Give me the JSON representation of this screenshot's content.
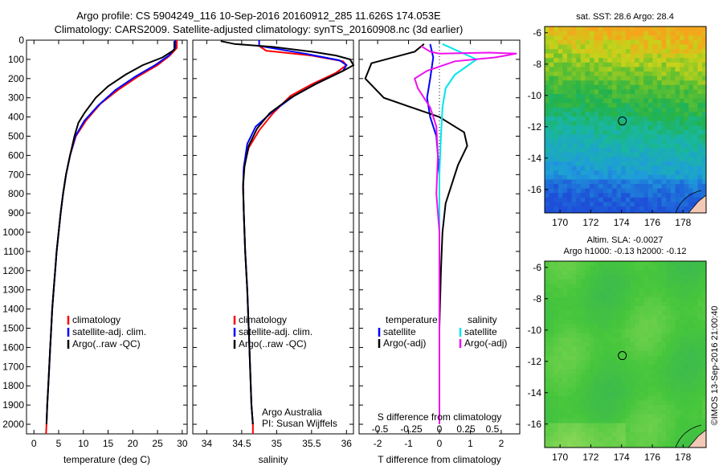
{
  "header": {
    "line1": "Argo profile: CS 5904249_116 10-Sep-2016 20160912_285 11.626S 174.053E",
    "line2": "Climatology: CARS2009. Satellite-adjusted climatology: synTS_20160908.nc (3d earlier)"
  },
  "side_label": "©IMOS 13-Sep-2016 21:00:40",
  "colors": {
    "climatology": "#ff0000",
    "satellite": "#0000ff",
    "argo": "#000000",
    "satellite_s": "#00e5ee",
    "argo_s": "#ee11ee"
  },
  "chart_data": [
    {
      "type": "line",
      "xlabel": "temperature (deg C)",
      "ylim": [
        2050,
        0
      ],
      "xlim": [
        -1.5,
        31
      ],
      "xticks": [
        0,
        5,
        10,
        15,
        20,
        25,
        30
      ],
      "yticks": [
        0,
        100,
        200,
        300,
        400,
        500,
        600,
        700,
        800,
        900,
        1000,
        1100,
        1200,
        1300,
        1400,
        1500,
        1600,
        1700,
        1800,
        1900,
        2000
      ],
      "legend": [
        "climatology",
        "satellite-adj. clim.",
        "Argo(..raw -QC)"
      ],
      "series": [
        {
          "name": "climatology",
          "color": "#ff0000",
          "points": [
            [
              28.9,
              0
            ],
            [
              28.9,
              40
            ],
            [
              27.5,
              80
            ],
            [
              25,
              130
            ],
            [
              21,
              190
            ],
            [
              17,
              260
            ],
            [
              13.5,
              330
            ],
            [
              10.5,
              420
            ],
            [
              8.5,
              500
            ],
            [
              7.3,
              600
            ],
            [
              6.5,
              700
            ],
            [
              5.9,
              800
            ],
            [
              5.4,
              900
            ],
            [
              5,
              1000
            ],
            [
              4.6,
              1100
            ],
            [
              4.3,
              1200
            ],
            [
              4,
              1300
            ],
            [
              3.7,
              1400
            ],
            [
              3.5,
              1500
            ],
            [
              3.3,
              1600
            ],
            [
              3.1,
              1700
            ],
            [
              2.9,
              1800
            ],
            [
              2.7,
              1900
            ],
            [
              2.55,
              2000
            ],
            [
              2.45,
              2050
            ]
          ]
        },
        {
          "name": "satellite-adj. clim.",
          "color": "#0000ff",
          "points": [
            [
              28.6,
              0
            ],
            [
              28.6,
              40
            ],
            [
              27.3,
              80
            ],
            [
              24.5,
              130
            ],
            [
              20.5,
              190
            ],
            [
              16.5,
              260
            ],
            [
              13,
              340
            ],
            [
              10.2,
              420
            ],
            [
              8.4,
              500
            ],
            [
              7.3,
              600
            ],
            [
              6.5,
              700
            ],
            [
              5.9,
              800
            ],
            [
              5.4,
              900
            ],
            [
              5,
              1000
            ],
            [
              4.6,
              1100
            ],
            [
              4.3,
              1200
            ],
            [
              4,
              1300
            ],
            [
              3.7,
              1400
            ],
            [
              3.5,
              1500
            ],
            [
              3.3,
              1600
            ],
            [
              3.1,
              1700
            ],
            [
              2.9,
              1800
            ],
            [
              2.7,
              1900
            ],
            [
              2.55,
              2000
            ]
          ]
        },
        {
          "name": "Argo(..raw -QC)",
          "color": "#000000",
          "points": [
            [
              28.4,
              5
            ],
            [
              28.4,
              50
            ],
            [
              26,
              90
            ],
            [
              22,
              130
            ],
            [
              18.5,
              180
            ],
            [
              15,
              240
            ],
            [
              12.5,
              300
            ],
            [
              10.2,
              380
            ],
            [
              9,
              430
            ],
            [
              8.2,
              500
            ],
            [
              7.3,
              600
            ],
            [
              6.5,
              700
            ],
            [
              5.9,
              800
            ],
            [
              5.4,
              900
            ],
            [
              5,
              1000
            ],
            [
              4.6,
              1100
            ],
            [
              4.3,
              1200
            ],
            [
              4,
              1300
            ],
            [
              3.7,
              1400
            ],
            [
              3.5,
              1500
            ],
            [
              3.3,
              1600
            ],
            [
              3.1,
              1700
            ],
            [
              2.9,
              1800
            ],
            [
              2.7,
              1900
            ],
            [
              2.55,
              2000
            ]
          ]
        }
      ]
    },
    {
      "type": "line",
      "xlabel": "salinity",
      "ylim": [
        2050,
        0
      ],
      "xlim": [
        33.8,
        36.1
      ],
      "xticks": [
        34,
        34.5,
        35,
        35.5,
        36
      ],
      "legend": [
        "climatology",
        "satellite-adj. clim.",
        "Argo(..raw -QC)"
      ],
      "annotation": [
        "Argo Australia",
        "PI: Susan Wijffels"
      ],
      "series": [
        {
          "name": "climatology",
          "color": "#ff0000",
          "points": [
            [
              34.75,
              30
            ],
            [
              34.85,
              55
            ],
            [
              35.5,
              80
            ],
            [
              35.95,
              110
            ],
            [
              36,
              130
            ],
            [
              35.85,
              170
            ],
            [
              35.5,
              230
            ],
            [
              35.2,
              290
            ],
            [
              34.95,
              380
            ],
            [
              34.75,
              470
            ],
            [
              34.6,
              560
            ],
            [
              34.53,
              660
            ],
            [
              34.52,
              760
            ],
            [
              34.53,
              900
            ],
            [
              34.55,
              1100
            ],
            [
              34.58,
              1300
            ],
            [
              34.6,
              1500
            ],
            [
              34.62,
              1700
            ],
            [
              34.64,
              1900
            ],
            [
              34.66,
              2000
            ],
            [
              34.66,
              2050
            ]
          ]
        },
        {
          "name": "satellite-adj. clim.",
          "color": "#0000ff",
          "points": [
            [
              34.75,
              0
            ],
            [
              34.75,
              30
            ],
            [
              35.4,
              70
            ],
            [
              35.9,
              105
            ],
            [
              36,
              130
            ],
            [
              35.95,
              160
            ],
            [
              35.6,
              220
            ],
            [
              35.25,
              290
            ],
            [
              34.95,
              370
            ],
            [
              34.7,
              450
            ],
            [
              34.58,
              540
            ],
            [
              34.53,
              660
            ],
            [
              34.52,
              760
            ],
            [
              34.53,
              900
            ],
            [
              34.55,
              1100
            ],
            [
              34.58,
              1300
            ],
            [
              34.6,
              1500
            ],
            [
              34.62,
              1700
            ],
            [
              34.64,
              1900
            ],
            [
              34.66,
              2000
            ]
          ]
        },
        {
          "name": "Argo(..raw -QC)",
          "color": "#000000",
          "points": [
            [
              34.2,
              5
            ],
            [
              34.4,
              20
            ],
            [
              34.95,
              35
            ],
            [
              35.5,
              60
            ],
            [
              35.85,
              80
            ],
            [
              36.05,
              100
            ],
            [
              36.1,
              130
            ],
            [
              35.95,
              160
            ],
            [
              35.55,
              230
            ],
            [
              35.2,
              300
            ],
            [
              34.9,
              380
            ],
            [
              34.72,
              460
            ],
            [
              34.6,
              550
            ],
            [
              34.54,
              660
            ],
            [
              34.52,
              760
            ],
            [
              34.53,
              900
            ],
            [
              34.55,
              1100
            ],
            [
              34.58,
              1300
            ],
            [
              34.6,
              1500
            ],
            [
              34.62,
              1700
            ],
            [
              34.64,
              1900
            ],
            [
              34.66,
              2000
            ]
          ]
        }
      ]
    },
    {
      "type": "line",
      "xlabel": "T difference from climatology",
      "xlabel_top": "S difference from climatology",
      "ylim": [
        2050,
        0
      ],
      "xlim": [
        -2.6,
        2.6
      ],
      "xticks": [
        -2,
        -1,
        0,
        1,
        2
      ],
      "xticks_top_labels": [
        "-0.5",
        "-0.25",
        "0",
        "0.25",
        "0.5"
      ],
      "legend_headers": [
        "temperature",
        "salinity"
      ],
      "legend": [
        "satellite",
        "Argo(-adj)",
        "satellite",
        "Argo(-adj)"
      ],
      "series": [
        {
          "name": "temperature satellite",
          "color": "#0000ff",
          "points": [
            [
              -0.3,
              20
            ],
            [
              -0.2,
              90
            ],
            [
              -0.3,
              200
            ],
            [
              -0.4,
              300
            ],
            [
              -0.3,
              400
            ],
            [
              -0.1,
              500
            ],
            [
              -0.05,
              600
            ],
            [
              0,
              700
            ],
            [
              0,
              800
            ],
            [
              0,
              1000
            ],
            [
              0,
              1500
            ],
            [
              0,
              2000
            ]
          ]
        },
        {
          "name": "temperature Argo(-adj)",
          "color": "#000000",
          "points": [
            [
              -0.5,
              20
            ],
            [
              -0.8,
              60
            ],
            [
              -2.2,
              120
            ],
            [
              -2.4,
              200
            ],
            [
              -1.8,
              300
            ],
            [
              -0.9,
              350
            ],
            [
              0,
              400
            ],
            [
              0.8,
              480
            ],
            [
              0.9,
              550
            ],
            [
              0.6,
              650
            ],
            [
              0.4,
              750
            ],
            [
              0.2,
              850
            ],
            [
              0.1,
              1000
            ],
            [
              0.05,
              1200
            ],
            [
              0,
              1500
            ],
            [
              0,
              2000
            ]
          ]
        },
        {
          "name": "salinity satellite",
          "color": "#00e5ee",
          "points": [
            [
              0.1,
              20
            ],
            [
              1.2,
              100
            ],
            [
              0.5,
              180
            ],
            [
              0.2,
              250
            ],
            [
              0.1,
              350
            ],
            [
              0.05,
              500
            ],
            [
              0,
              700
            ],
            [
              0,
              1000
            ],
            [
              0,
              1500
            ],
            [
              0,
              2000
            ]
          ]
        },
        {
          "name": "salinity Argo(-adj)",
          "color": "#ee11ee",
          "points": [
            [
              -0.6,
              30
            ],
            [
              -0.3,
              60
            ],
            [
              0,
              70
            ],
            [
              1.6,
              65
            ],
            [
              2.5,
              70
            ],
            [
              1.8,
              90
            ],
            [
              0.5,
              110
            ],
            [
              -0.4,
              160
            ],
            [
              -0.8,
              200
            ],
            [
              -0.7,
              250
            ],
            [
              -0.3,
              350
            ],
            [
              -0.1,
              450
            ],
            [
              -0.05,
              600
            ],
            [
              -0.1,
              800
            ],
            [
              0,
              1000
            ],
            [
              0,
              1500
            ],
            [
              0,
              2000
            ]
          ]
        }
      ]
    },
    {
      "type": "heatmap",
      "title": "sat. SST: 28.6  Argo: 28.4",
      "xlim": [
        169,
        179.5
      ],
      "ylim": [
        -17.5,
        -5.6
      ],
      "xticks": [
        170,
        172,
        174,
        176,
        178
      ],
      "yticks": [
        -6,
        -8,
        -10,
        -12,
        -14,
        -16
      ],
      "marker": [
        174.05,
        -11.63
      ]
    },
    {
      "type": "heatmap",
      "title": "Altim. SLA: -0.0027",
      "subtitle": "Argo h1000: -0.13 h2000: -0.12",
      "xlim": [
        169,
        179.5
      ],
      "ylim": [
        -17.5,
        -5.6
      ],
      "xticks": [
        170,
        172,
        174,
        176,
        178
      ],
      "yticks": [
        -6,
        -8,
        -10,
        -12,
        -14,
        -16
      ],
      "marker": [
        174.05,
        -11.63
      ]
    }
  ]
}
